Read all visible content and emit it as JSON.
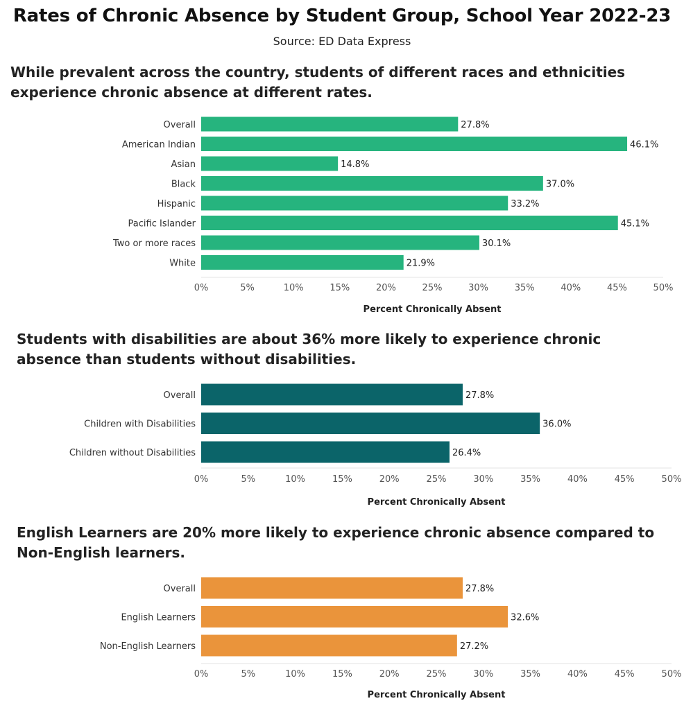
{
  "title": "Rates of Chronic Absence by Student Group, School Year 2022-23",
  "source": "Source: ED Data Express",
  "chart_data": [
    {
      "type": "bar",
      "orientation": "horizontal",
      "title": "While prevalent across the country, students of different races and ethnicities experience chronic absence at different rates.",
      "categories": [
        "Overall",
        "American Indian",
        "Asian",
        "Black",
        "Hispanic",
        "Pacific Islander",
        "Two or more races",
        "White"
      ],
      "values": [
        27.8,
        46.1,
        14.8,
        37.0,
        33.2,
        45.1,
        30.1,
        21.9
      ],
      "data_labels": [
        "27.8%",
        "46.1%",
        "14.8%",
        "37.0%",
        "33.2%",
        "45.1%",
        "30.1%",
        "21.9%"
      ],
      "xlabel": "Percent Chronically Absent",
      "xlim": [
        0,
        50
      ],
      "xticks": [
        "0%",
        "5%",
        "10%",
        "15%",
        "20%",
        "25%",
        "30%",
        "35%",
        "40%",
        "45%",
        "50%"
      ],
      "color": "#26b47e"
    },
    {
      "type": "bar",
      "orientation": "horizontal",
      "title": "Students with disabilities are about 36% more likely to experience chronic absence than students without disabilities.",
      "categories": [
        "Overall",
        "Children with Disabilities",
        "Children without Disabilities"
      ],
      "values": [
        27.8,
        36.0,
        26.4
      ],
      "data_labels": [
        "27.8%",
        "36.0%",
        "26.4%"
      ],
      "xlabel": "Percent Chronically Absent",
      "xlim": [
        0,
        50
      ],
      "xticks": [
        "0%",
        "5%",
        "10%",
        "15%",
        "20%",
        "25%",
        "30%",
        "35%",
        "40%",
        "45%",
        "50%"
      ],
      "color": "#0b6469"
    },
    {
      "type": "bar",
      "orientation": "horizontal",
      "title": "English Learners are 20% more likely to experience chronic absence compared to Non-English learners.",
      "categories": [
        "Overall",
        "English Learners",
        "Non-English Learners"
      ],
      "values": [
        27.8,
        32.6,
        27.2
      ],
      "data_labels": [
        "27.8%",
        "32.6%",
        "27.2%"
      ],
      "xlabel": "Percent Chronically Absent",
      "xlim": [
        0,
        50
      ],
      "xticks": [
        "0%",
        "5%",
        "10%",
        "15%",
        "20%",
        "25%",
        "30%",
        "35%",
        "40%",
        "45%",
        "50%"
      ],
      "color": "#ea943b"
    }
  ]
}
